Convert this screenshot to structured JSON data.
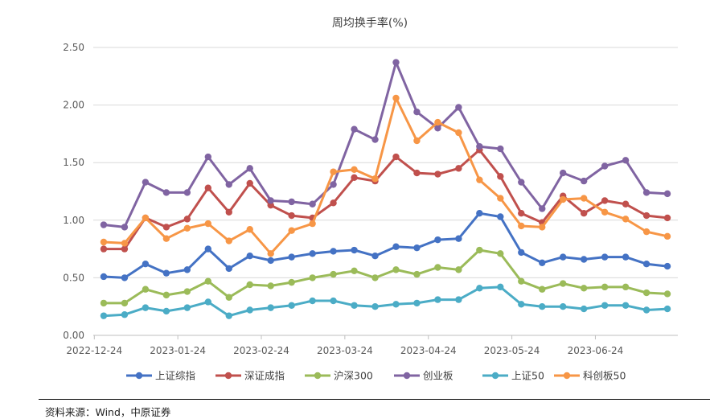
{
  "chart_data": {
    "type": "line",
    "title": "周均换手率(%)",
    "xlabel": "",
    "ylabel": "",
    "ylim": [
      0,
      2.5
    ],
    "y_ticks": [
      "0.00",
      "0.50",
      "1.00",
      "1.50",
      "2.00",
      "2.50"
    ],
    "x_tick_labels": [
      "2022-12-24",
      "2023-01-24",
      "2023-02-24",
      "2023-03-24",
      "2023-04-24",
      "2023-05-24",
      "2023-06-24"
    ],
    "x_tick_indices": [
      0,
      4,
      8,
      12,
      16,
      20,
      24
    ],
    "legend_position": "bottom",
    "series": [
      {
        "name": "上证综指",
        "color": "#4472c4",
        "values": [
          0.51,
          0.5,
          0.62,
          0.54,
          0.57,
          0.75,
          0.58,
          0.69,
          0.65,
          0.68,
          0.71,
          0.73,
          0.74,
          0.69,
          0.77,
          0.76,
          0.83,
          0.84,
          1.06,
          1.03,
          0.72,
          0.63,
          0.68,
          0.66,
          0.68,
          0.68,
          0.62,
          0.6
        ]
      },
      {
        "name": "深证成指",
        "color": "#c0504d",
        "values": [
          0.75,
          0.75,
          1.02,
          0.94,
          1.01,
          1.28,
          1.07,
          1.32,
          1.13,
          1.04,
          1.02,
          1.15,
          1.37,
          1.34,
          1.55,
          1.41,
          1.4,
          1.45,
          1.61,
          1.38,
          1.06,
          0.98,
          1.21,
          1.06,
          1.17,
          1.14,
          1.04,
          1.02
        ]
      },
      {
        "name": "沪深300",
        "color": "#9bbb59",
        "values": [
          0.28,
          0.28,
          0.4,
          0.35,
          0.38,
          0.47,
          0.33,
          0.44,
          0.43,
          0.46,
          0.5,
          0.53,
          0.56,
          0.5,
          0.57,
          0.53,
          0.59,
          0.57,
          0.74,
          0.71,
          0.47,
          0.4,
          0.45,
          0.41,
          0.42,
          0.42,
          0.37,
          0.36
        ]
      },
      {
        "name": "创业板",
        "color": "#8064a2",
        "values": [
          0.96,
          0.94,
          1.33,
          1.24,
          1.24,
          1.55,
          1.31,
          1.45,
          1.17,
          1.16,
          1.14,
          1.31,
          1.79,
          1.7,
          2.37,
          1.94,
          1.8,
          1.98,
          1.64,
          1.62,
          1.33,
          1.1,
          1.41,
          1.34,
          1.47,
          1.52,
          1.24,
          1.23
        ]
      },
      {
        "name": "上证50",
        "color": "#4bacc6",
        "values": [
          0.17,
          0.18,
          0.24,
          0.21,
          0.24,
          0.29,
          0.17,
          0.22,
          0.24,
          0.26,
          0.3,
          0.3,
          0.26,
          0.25,
          0.27,
          0.28,
          0.31,
          0.31,
          0.41,
          0.42,
          0.27,
          0.25,
          0.25,
          0.23,
          0.26,
          0.26,
          0.22,
          0.23
        ]
      },
      {
        "name": "科创板50",
        "color": "#f79646",
        "values": [
          0.81,
          0.8,
          1.02,
          0.84,
          0.93,
          0.97,
          0.82,
          0.92,
          0.71,
          0.91,
          0.97,
          1.42,
          1.44,
          1.36,
          2.06,
          1.69,
          1.85,
          1.76,
          1.35,
          1.19,
          0.95,
          0.94,
          1.18,
          1.19,
          1.07,
          1.01,
          0.9,
          0.86
        ]
      }
    ]
  },
  "source_text": "资料来源：Wind，中原证券"
}
